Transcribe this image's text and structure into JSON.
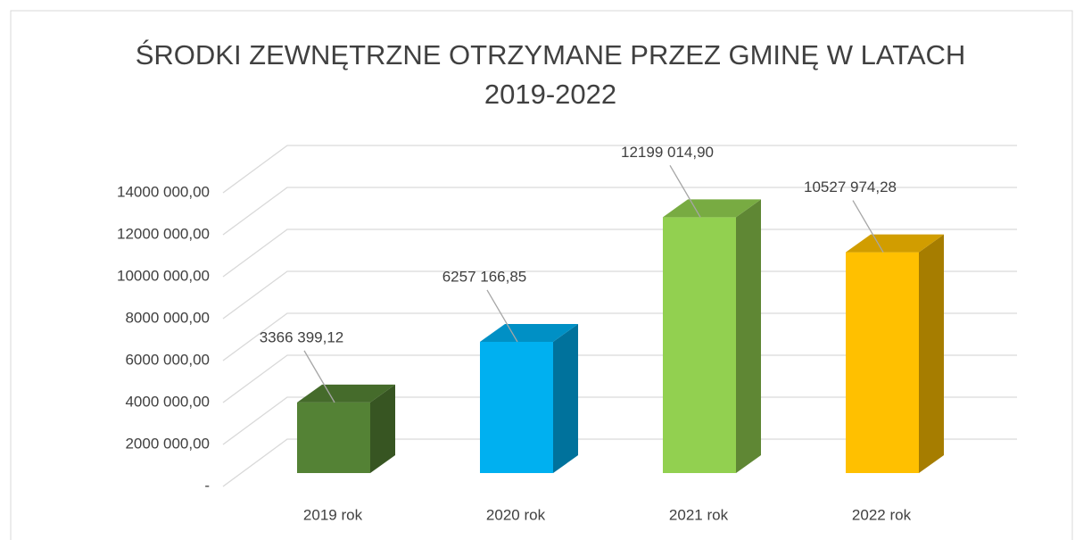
{
  "chart_data": {
    "type": "bar3d",
    "title": "ŚRODKI ZEWNĘTRZNE OTRZYMANE PRZEZ GMINĘ W LATACH 2019-2022",
    "categories": [
      "2019 rok",
      "2020 rok",
      "2021 rok",
      "2022 rok"
    ],
    "values": [
      3366399.12,
      6257166.85,
      12199014.9,
      10527974.28
    ],
    "value_labels": [
      "3366 399,12",
      "6257 166,85",
      "12199 014,90",
      "10527 974,28"
    ],
    "colors": [
      "#548235",
      "#00b0f0",
      "#92d050",
      "#ffc000"
    ],
    "ylim": [
      0,
      14000000
    ],
    "yticks": [
      {
        "value": 0,
        "label": "-"
      },
      {
        "value": 2000000,
        "label": "2000 000,00"
      },
      {
        "value": 4000000,
        "label": "4000 000,00"
      },
      {
        "value": 6000000,
        "label": "6000 000,00"
      },
      {
        "value": 8000000,
        "label": "8000 000,00"
      },
      {
        "value": 10000000,
        "label": "10000 000,00"
      },
      {
        "value": 12000000,
        "label": "12000 000,00"
      },
      {
        "value": 14000000,
        "label": "14000 000,00"
      }
    ],
    "grid": true
  }
}
